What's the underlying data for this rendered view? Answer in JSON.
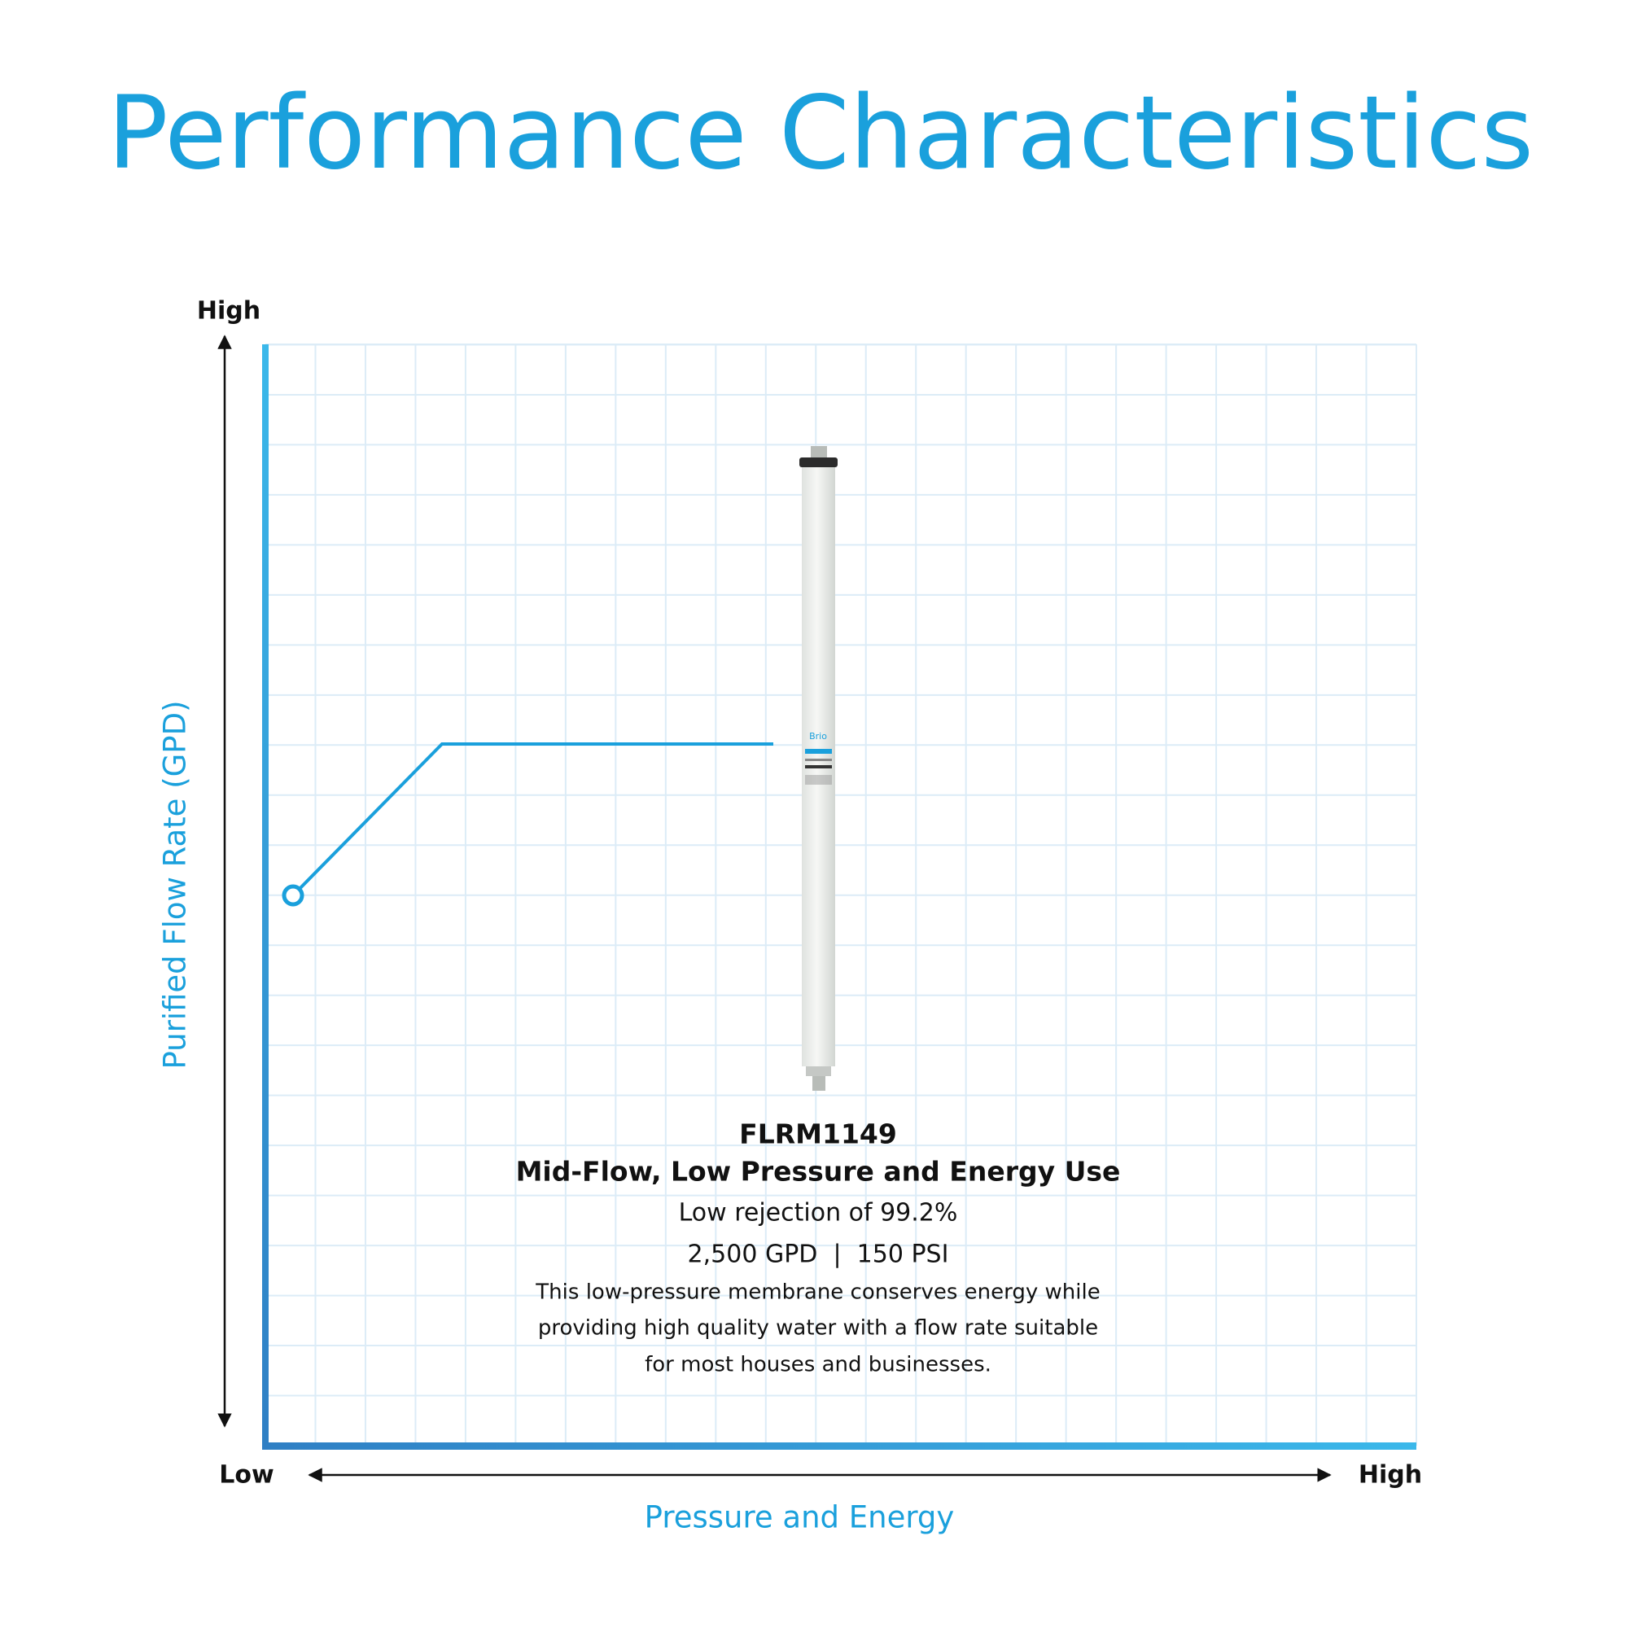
{
  "header": {
    "title": "Performance Characteristics"
  },
  "y_axis": {
    "high": "High",
    "label": "Purified Flow Rate (GPD)"
  },
  "x_axis": {
    "low": "Low",
    "high": "High",
    "label": "Pressure and Energy"
  },
  "product": {
    "brand": "Brio",
    "model": "FLRM1149",
    "headline": "Mid-Flow, Low Pressure and Energy Use",
    "rejection": "Low rejection of 99.2%",
    "specs": "2,500 GPD  |  150 PSI",
    "description": [
      "This low-pressure membrane conserves energy while",
      "providing high quality water with a flow rate suitable",
      "for most houses and businesses."
    ]
  }
}
